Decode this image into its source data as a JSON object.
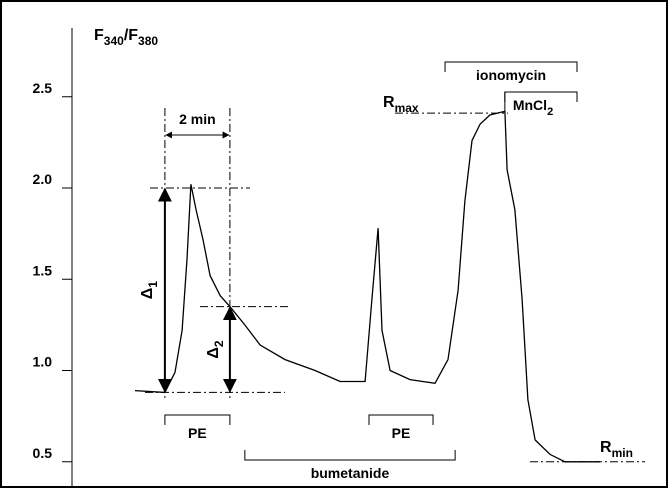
{
  "chart_data": {
    "type": "line",
    "ylabel": [
      "F",
      "340",
      "/F",
      "380"
    ],
    "xlim": [
      0,
      16
    ],
    "ylim": [
      0.4,
      2.9
    ],
    "yticks": [
      0.5,
      {
        "value": 1.0,
        "label": "1.0"
      },
      1.5,
      {
        "value": 2.0,
        "label": "2.0"
      },
      2.5
    ],
    "series": [
      {
        "color": "#000000",
        "x": [
          0,
          0.92,
          1.23,
          1.45,
          1.6,
          1.72,
          1.88,
          2.09,
          2.31,
          2.62,
          2.92,
          3.38,
          3.85,
          4.62,
          5.54,
          6.31,
          7.08,
          7.29,
          7.48,
          7.6,
          7.85,
          8.46,
          9.23,
          9.63,
          9.94,
          10.15,
          10.37,
          10.62,
          10.92,
          11.38,
          11.45,
          11.69,
          11.91,
          12.09,
          12.31,
          12.77,
          13.23,
          14.31
        ],
        "values": [
          0.89,
          0.88,
          0.99,
          1.22,
          1.61,
          2.02,
          1.88,
          1.72,
          1.52,
          1.41,
          1.35,
          1.25,
          1.14,
          1.06,
          1.0,
          0.94,
          0.94,
          1.39,
          1.78,
          1.22,
          1.0,
          0.95,
          0.93,
          1.06,
          1.44,
          1.93,
          2.26,
          2.35,
          2.4,
          2.42,
          2.1,
          1.88,
          1.39,
          0.84,
          0.62,
          0.54,
          0.5,
          0.5
        ]
      }
    ],
    "treatments": [
      {
        "label": "PE",
        "start": 0.92,
        "end": 2.92
      },
      {
        "label": "PE",
        "start": 7.2,
        "end": 9.17
      },
      {
        "label": "bumetanide",
        "start": 3.38,
        "end": 9.85
      },
      {
        "label": "ionomycin",
        "start": 9.54,
        "end": 13.6
      },
      {
        "label": [
          "MnCl",
          "2"
        ],
        "start": 11.38,
        "end": 13.6
      }
    ],
    "scale_bar": {
      "label": "2 min",
      "start": 0.92,
      "end": 2.92
    },
    "levels": {
      "baseline": 0.88,
      "peak": 2.0,
      "delta2_level": 1.35,
      "delta1_label": [
        "Δ",
        "1"
      ],
      "delta2_label": [
        "Δ",
        "2"
      ],
      "rmax": 2.41,
      "rmax_label": [
        "R",
        "max"
      ],
      "rmin": 0.5,
      "rmin_label": [
        "R",
        "min"
      ]
    }
  }
}
